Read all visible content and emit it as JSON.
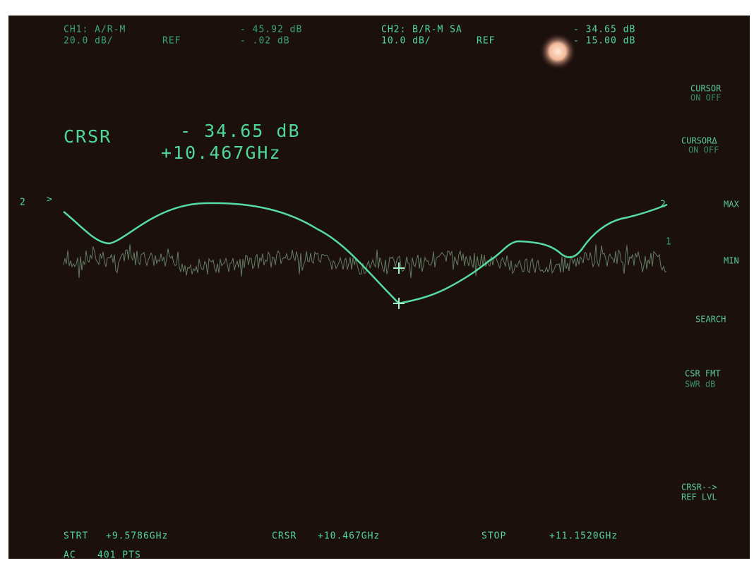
{
  "header": {
    "ch1": {
      "label": "CH1: A/R-M",
      "value": "- 45.92 dB",
      "scale": "20.0 dB/",
      "ref_label": "REF",
      "ref": "- .02 dB"
    },
    "ch2": {
      "label": "CH2: B/R-M SA",
      "value": "- 34.65 dB",
      "scale": "10.0 dB/",
      "ref_label": "REF",
      "ref": "- 15.00 dB"
    }
  },
  "cursor_readout": {
    "label": "CRSR",
    "value": "- 34.65 dB",
    "frequency": "+10.467GHz"
  },
  "trace_markers": {
    "left": "2",
    "left_arrow": ">",
    "right_2": "2",
    "right_1": "1"
  },
  "softkeys": [
    [
      "CURSOR",
      "ON OFF"
    ],
    [
      "CURSORΔ",
      "ON OFF"
    ],
    [
      "MAX"
    ],
    [
      "MIN"
    ],
    [
      "SEARCH"
    ],
    [
      "CSR FMT",
      "SWR dB"
    ],
    [
      "CRSR-->",
      "REF LVL"
    ]
  ],
  "footer": {
    "start_label": "STRT",
    "start": "+9.5786GHz",
    "cursor_label": "CRSR",
    "cursor": "+10.467GHz",
    "stop_label": "STOP",
    "stop": "+11.1520GHz",
    "mode": "AC",
    "points": "401 PTS"
  }
}
